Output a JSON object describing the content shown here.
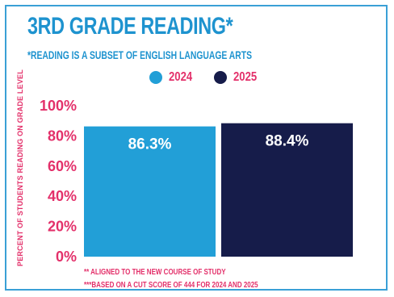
{
  "title": "3RD GRADE READING*",
  "subtitle": "*READING IS A SUBSET OF ENGLISH LANGUAGE ARTS",
  "colors": {
    "y2024": "#229fd7",
    "y2025": "#161c4a",
    "accent": "#e3306a",
    "title": "#1e93cf"
  },
  "chart_data": {
    "type": "bar",
    "categories": [
      "2024",
      "2025"
    ],
    "values": [
      86.3,
      88.4
    ],
    "value_labels": [
      "86.3%",
      "88.4%"
    ],
    "ylabel": "PERCENT OF STUDENTS READING ON GRADE LEVEL",
    "ylim": [
      0,
      100
    ],
    "yticks": [
      "0%",
      "20%",
      "40%",
      "60%",
      "80%",
      "100%"
    ],
    "legend": [
      "2024",
      "2025"
    ],
    "legend_position": "top-center",
    "grid": false
  },
  "footnotes": [
    "** ALIGNED TO THE NEW COURSE OF STUDY",
    "***BASED ON A CUT SCORE OF 444 FOR 2024 AND 2025"
  ]
}
